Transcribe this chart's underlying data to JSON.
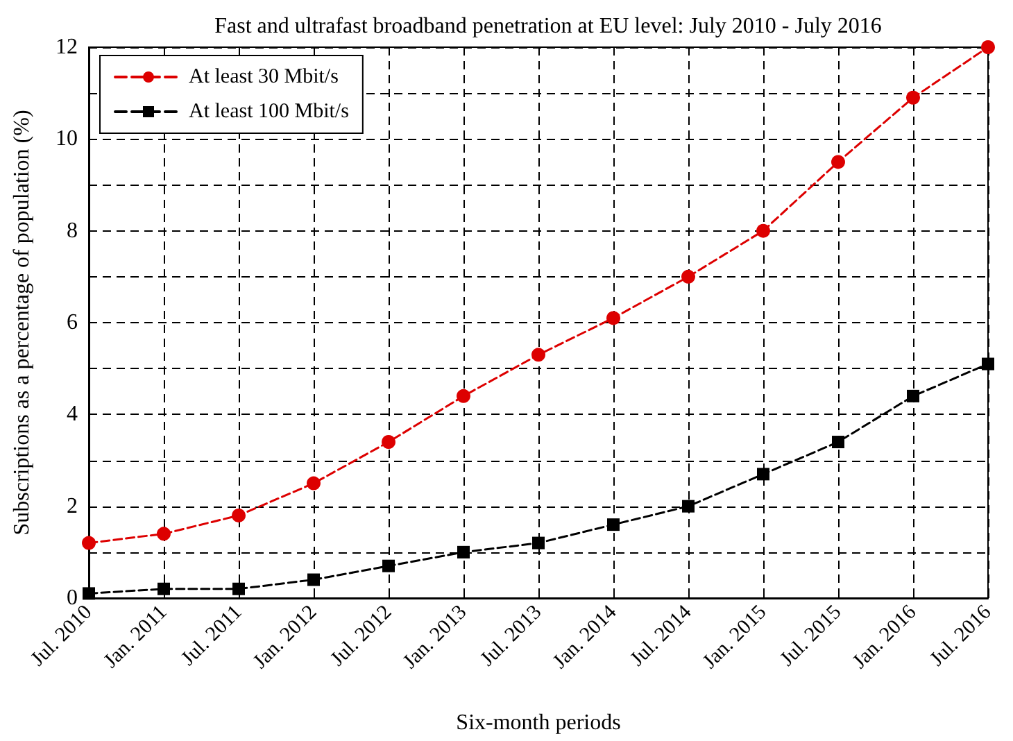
{
  "chart_data": {
    "type": "line",
    "title": "Fast and ultrafast broadband penetration at EU level: July 2010 - July 2016",
    "xlabel": "Six-month periods",
    "ylabel": "Subscriptions as a percentage of population (%)",
    "categories": [
      "Jul. 2010",
      "Jan. 2011",
      "Jul. 2011",
      "Jan. 2012",
      "Jul. 2012",
      "Jan. 2013",
      "Jul. 2013",
      "Jan. 2014",
      "Jul. 2014",
      "Jan. 2015",
      "Jul. 2015",
      "Jan. 2016",
      "Jul. 2016"
    ],
    "series": [
      {
        "name": "At least 30 Mbit/s",
        "color": "#dd0000",
        "marker": "circle",
        "values": [
          1.2,
          1.4,
          1.8,
          2.5,
          3.4,
          4.4,
          5.3,
          6.1,
          7.0,
          8.0,
          9.5,
          10.9,
          12.0
        ]
      },
      {
        "name": "At least 100 Mbit/s",
        "color": "#000000",
        "marker": "square",
        "values": [
          0.1,
          0.2,
          0.2,
          0.4,
          0.7,
          1.0,
          1.2,
          1.6,
          2.0,
          2.7,
          3.4,
          4.4,
          5.1
        ]
      }
    ],
    "ylim": [
      0,
      12
    ],
    "yticks": [
      0,
      {
        "value": 1,
        "label": null
      },
      2,
      {
        "value": 3,
        "label": null
      },
      4,
      {
        "value": 5,
        "label": null
      },
      6,
      {
        "value": 7,
        "label": null
      },
      8,
      {
        "value": 9,
        "label": null
      },
      10,
      {
        "value": 11,
        "label": null
      },
      12
    ],
    "grid": true,
    "legend": "top left",
    "line_style": "dashed"
  }
}
